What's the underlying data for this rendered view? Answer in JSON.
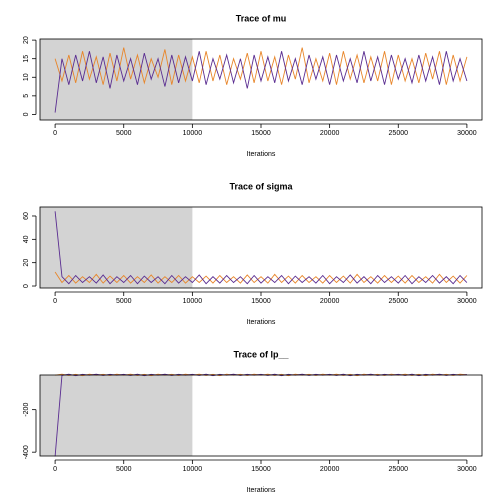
{
  "chart_data": [
    {
      "type": "line",
      "title": "Trace of  mu",
      "xlabel": "Iterations",
      "warmup": [
        0,
        10000
      ],
      "x": [
        0,
        500,
        1000,
        1500,
        2000,
        2500,
        3000,
        3500,
        4000,
        4500,
        5000,
        5500,
        6000,
        6500,
        7000,
        7500,
        8000,
        8500,
        9000,
        9500,
        10000,
        10500,
        11000,
        11500,
        12000,
        12500,
        13000,
        13500,
        14000,
        14500,
        15000,
        15500,
        16000,
        16500,
        17000,
        17500,
        18000,
        18500,
        19000,
        19500,
        20000,
        20500,
        21000,
        21500,
        22000,
        22500,
        23000,
        23500,
        24000,
        24500,
        25000,
        25500,
        26000,
        26500,
        27000,
        27500,
        28000,
        28500,
        29000,
        29500,
        30000
      ],
      "series": [
        {
          "color": "#e8862a",
          "values": [
            15,
            9,
            16,
            8.5,
            17,
            9.5,
            15.5,
            8,
            16.5,
            9,
            18,
            9.5,
            16,
            8.5,
            15,
            10,
            17.5,
            8,
            16,
            9,
            15.5,
            8.5,
            17,
            9,
            16,
            8,
            15,
            9.5,
            16.5,
            8.5,
            17,
            9,
            15.5,
            8,
            16,
            9.5,
            18,
            8.5,
            15,
            9,
            16.5,
            8,
            17,
            9.5,
            16,
            8.5,
            15.5,
            9,
            17,
            8,
            16,
            9,
            15,
            8.5,
            16.5,
            9.5,
            17,
            8,
            16,
            9,
            15.5
          ]
        },
        {
          "color": "#5a2d91",
          "values": [
            0.5,
            15,
            8,
            16,
            9,
            17,
            8.5,
            15.5,
            7,
            16,
            9,
            15,
            8,
            16.5,
            9.5,
            15,
            7.5,
            16,
            8.5,
            15.5,
            9,
            17,
            8,
            15,
            9.5,
            16,
            8.5,
            15,
            7,
            16,
            9,
            15.5,
            8.5,
            17,
            9,
            15,
            8,
            16,
            9.5,
            15.5,
            8,
            16,
            9,
            15,
            8.5,
            17,
            9,
            15.5,
            8,
            16,
            9.5,
            15,
            8.5,
            16,
            9,
            15.5,
            8,
            17,
            9,
            15,
            9
          ]
        }
      ],
      "xlim": [
        -1100,
        31100
      ],
      "ylim": [
        -1.5,
        20.3
      ],
      "xticks": [
        0,
        5000,
        10000,
        15000,
        20000,
        25000,
        30000
      ],
      "yticks": [
        0,
        5,
        10,
        15,
        20
      ]
    },
    {
      "type": "line",
      "title": "Trace of  sigma",
      "xlabel": "Iterations",
      "warmup": [
        0,
        10000
      ],
      "x": [
        0,
        500,
        1000,
        1500,
        2000,
        2500,
        3000,
        3500,
        4000,
        4500,
        5000,
        5500,
        6000,
        6500,
        7000,
        7500,
        8000,
        8500,
        9000,
        9500,
        10000,
        10500,
        11000,
        11500,
        12000,
        12500,
        13000,
        13500,
        14000,
        14500,
        15000,
        15500,
        16000,
        16500,
        17000,
        17500,
        18000,
        18500,
        19000,
        19500,
        20000,
        20500,
        21000,
        21500,
        22000,
        22500,
        23000,
        23500,
        24000,
        24500,
        25000,
        25500,
        26000,
        26500,
        27000,
        27500,
        28000,
        28500,
        29000,
        29500,
        30000
      ],
      "series": [
        {
          "color": "#e8862a",
          "values": [
            12,
            3,
            9,
            2.5,
            8,
            3,
            10,
            2.5,
            8.5,
            3,
            9,
            2.5,
            8,
            3,
            9.5,
            2.5,
            8,
            3,
            9,
            2.5,
            8,
            3,
            8.5,
            2.5,
            9,
            3,
            8,
            2.5,
            9.5,
            3,
            8,
            2.5,
            10,
            3,
            8.5,
            2.5,
            9,
            3,
            8,
            2.5,
            9,
            3,
            8.5,
            2.5,
            10,
            3,
            8,
            2.5,
            9,
            3,
            8.5,
            2.5,
            9,
            3,
            8,
            2.5,
            10,
            3,
            8.5,
            2.5,
            9
          ]
        },
        {
          "color": "#5a2d91",
          "values": [
            64,
            8,
            2,
            9,
            3,
            8,
            2.5,
            9.5,
            2,
            8,
            3,
            9,
            2,
            8.5,
            3,
            8,
            2,
            9,
            2.5,
            8,
            3,
            9.5,
            2,
            8,
            2.5,
            9,
            3,
            8,
            2,
            9,
            2.5,
            8,
            3,
            9,
            2,
            8.5,
            3,
            8,
            2.5,
            9,
            2,
            8,
            3,
            9.5,
            2.5,
            8,
            2,
            9,
            3,
            8,
            2.5,
            9,
            2,
            8,
            3,
            9,
            2.5,
            8,
            2,
            9,
            3
          ]
        }
      ],
      "xlim": [
        -1100,
        31100
      ],
      "ylim": [
        -1.7,
        67.7
      ],
      "xticks": [
        0,
        5000,
        10000,
        15000,
        20000,
        25000,
        30000
      ],
      "yticks": [
        0,
        20,
        40,
        60
      ]
    },
    {
      "type": "line",
      "title": "Trace of  lp__",
      "xlabel": "Iterations",
      "warmup": [
        0,
        10000
      ],
      "x": [
        0,
        500,
        1000,
        1500,
        2000,
        2500,
        3000,
        3500,
        4000,
        4500,
        5000,
        5500,
        6000,
        6500,
        7000,
        7500,
        8000,
        8500,
        9000,
        9500,
        10000,
        10500,
        11000,
        11500,
        12000,
        12500,
        13000,
        13500,
        14000,
        14500,
        15000,
        15500,
        16000,
        16500,
        17000,
        17500,
        18000,
        18500,
        19000,
        19500,
        20000,
        20500,
        21000,
        21500,
        22000,
        22500,
        23000,
        23500,
        24000,
        24500,
        25000,
        25500,
        26000,
        26500,
        27000,
        27500,
        28000,
        28500,
        29000,
        29500,
        30000
      ],
      "series": [
        {
          "color": "#e8862a",
          "values": [
            -38,
            -33,
            -39,
            -34,
            -40,
            -33,
            -38,
            -34,
            -39,
            -33,
            -38,
            -33,
            -39,
            -34,
            -40,
            -33,
            -38,
            -34,
            -39,
            -33,
            -38,
            -33,
            -39,
            -34,
            -40,
            -33,
            -38,
            -34,
            -39,
            -33,
            -38,
            -33,
            -39,
            -34,
            -40,
            -33,
            -38,
            -34,
            -39,
            -33,
            -38,
            -33,
            -39,
            -34,
            -40,
            -33,
            -38,
            -34,
            -39,
            -33,
            -38,
            -33,
            -39,
            -34,
            -40,
            -33,
            -38,
            -34,
            -39,
            -33,
            -36
          ]
        },
        {
          "color": "#5a2d91",
          "values": [
            -420,
            -39,
            -33,
            -40,
            -34,
            -38,
            -33,
            -39,
            -34,
            -38,
            -34,
            -39,
            -33,
            -40,
            -34,
            -38,
            -33,
            -39,
            -34,
            -38,
            -34,
            -39,
            -33,
            -40,
            -34,
            -38,
            -33,
            -39,
            -34,
            -38,
            -34,
            -39,
            -33,
            -40,
            -34,
            -38,
            -33,
            -39,
            -34,
            -38,
            -34,
            -39,
            -33,
            -40,
            -34,
            -38,
            -33,
            -39,
            -34,
            -38,
            -34,
            -39,
            -33,
            -40,
            -34,
            -38,
            -33,
            -39,
            -34,
            -38,
            -35
          ]
        }
      ],
      "xlim": [
        -1100,
        31100
      ],
      "ylim": [
        -418,
        -37
      ],
      "xticks": [
        0,
        5000,
        10000,
        15000,
        20000,
        25000,
        30000
      ],
      "yticks": [
        -400,
        -200
      ]
    }
  ]
}
